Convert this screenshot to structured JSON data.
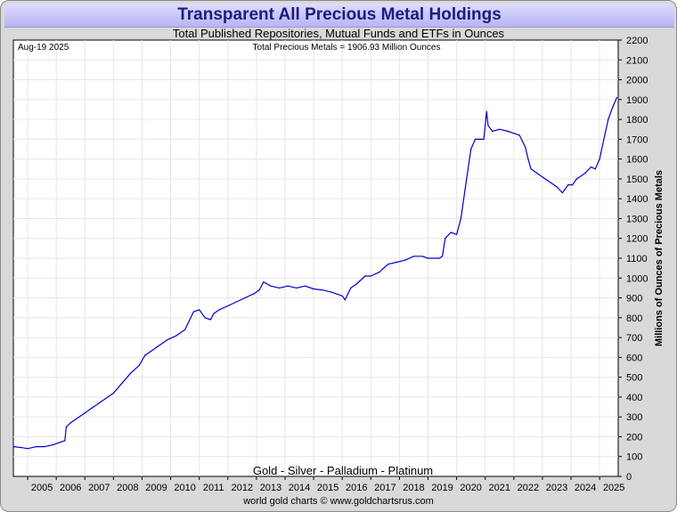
{
  "header": {
    "title": "Transparent All Precious Metal Holdings",
    "subtitle": "Total Published Repositories, Mutual Funds and ETFs in Ounces",
    "source": "world gold charts © www.goldchartsrus.com"
  },
  "chart_data": {
    "type": "line",
    "title": "Transparent All Precious Metal Holdings",
    "subtitle": "Total Published Repositories, Mutual Funds and ETFs in Ounces",
    "date_label": "Aug-19  2025",
    "total_label": "Total Precious Metals = 1906.93 Million Ounces",
    "legend_text": "Gold - Silver - Palladium - Platinum",
    "ylabel": "Millions of Ounces of Precious Metals",
    "xlabel": "",
    "ylim": [
      0,
      2200
    ],
    "xlim": [
      2004.5,
      2025.65
    ],
    "y_ticks": [
      0,
      100,
      200,
      300,
      400,
      500,
      600,
      700,
      800,
      900,
      1000,
      1100,
      1200,
      1300,
      1400,
      1500,
      1600,
      1700,
      1800,
      1900,
      2000,
      2100,
      2200
    ],
    "x_tick_labels": [
      "2005",
      "2006",
      "2007",
      "2008",
      "2009",
      "2010",
      "2011",
      "2012",
      "2013",
      "2014",
      "2015",
      "2016",
      "2017",
      "2018",
      "2019",
      "2020",
      "2021",
      "2022",
      "2023",
      "2024",
      "2025"
    ],
    "grid": true,
    "series": [
      {
        "name": "Total Precious Metals",
        "color": "#0000cc",
        "x": [
          2004.5,
          2004.8,
          2005.0,
          2005.3,
          2005.6,
          2005.9,
          2006.1,
          2006.3,
          2006.35,
          2006.5,
          2006.8,
          2007.0,
          2007.3,
          2007.6,
          2008.0,
          2008.3,
          2008.6,
          2008.9,
          2009.1,
          2009.3,
          2009.6,
          2009.9,
          2010.2,
          2010.5,
          2010.8,
          2011.0,
          2011.2,
          2011.4,
          2011.5,
          2011.7,
          2012.0,
          2012.3,
          2012.6,
          2012.9,
          2013.1,
          2013.25,
          2013.5,
          2013.8,
          2014.1,
          2014.4,
          2014.7,
          2015.0,
          2015.3,
          2015.6,
          2015.8,
          2016.0,
          2016.1,
          2016.3,
          2016.5,
          2016.8,
          2017.0,
          2017.3,
          2017.6,
          2017.9,
          2018.2,
          2018.5,
          2018.8,
          2019.0,
          2019.2,
          2019.4,
          2019.5,
          2019.6,
          2019.8,
          2020.0,
          2020.15,
          2020.3,
          2020.5,
          2020.65,
          2020.8,
          2020.95,
          2021.05,
          2021.1,
          2021.25,
          2021.5,
          2021.8,
          2022.0,
          2022.2,
          2022.4,
          2022.5,
          2022.6,
          2022.8,
          2023.0,
          2023.3,
          2023.5,
          2023.7,
          2023.9,
          2024.05,
          2024.2,
          2024.3,
          2024.5,
          2024.7,
          2024.85,
          2025.0,
          2025.15,
          2025.3,
          2025.45,
          2025.6
        ],
        "values": [
          150,
          145,
          140,
          150,
          150,
          160,
          170,
          180,
          250,
          270,
          300,
          320,
          350,
          380,
          420,
          470,
          520,
          560,
          610,
          630,
          660,
          690,
          710,
          740,
          830,
          840,
          800,
          790,
          820,
          840,
          860,
          880,
          900,
          920,
          940,
          980,
          960,
          950,
          960,
          950,
          960,
          945,
          940,
          930,
          920,
          910,
          890,
          950,
          970,
          1010,
          1010,
          1030,
          1070,
          1080,
          1090,
          1110,
          1110,
          1100,
          1100,
          1100,
          1110,
          1200,
          1230,
          1220,
          1300,
          1450,
          1650,
          1700,
          1700,
          1700,
          1840,
          1770,
          1740,
          1750,
          1740,
          1730,
          1720,
          1660,
          1600,
          1550,
          1530,
          1510,
          1480,
          1460,
          1430,
          1470,
          1470,
          1500,
          1510,
          1530,
          1560,
          1550,
          1600,
          1700,
          1800,
          1860,
          1910
        ]
      }
    ]
  }
}
